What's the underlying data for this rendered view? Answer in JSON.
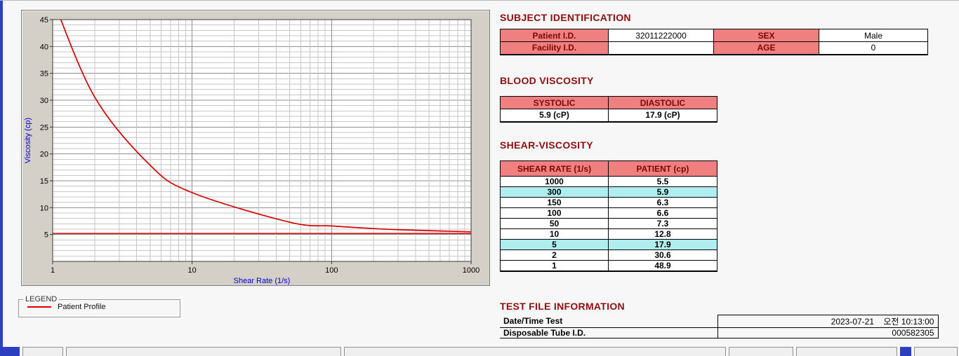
{
  "subject_identification": {
    "heading": "SUBJECT IDENTIFICATION",
    "rows": [
      {
        "label1": "Patient I.D.",
        "value1": "32011222000",
        "label2": "SEX",
        "value2": "Male"
      },
      {
        "label1": "Facility I.D.",
        "value1": "",
        "label2": "AGE",
        "value2": "0"
      }
    ]
  },
  "blood_viscosity": {
    "heading": "BLOOD VISCOSITY",
    "col1_header": "SYSTOLIC",
    "col2_header": "DIASTOLIC",
    "col1_value": "5.9 (cP)",
    "col2_value": "17.9 (cP)"
  },
  "shear_viscosity": {
    "heading": "SHEAR-VISCOSITY",
    "headers": [
      "SHEAR RATE (1/s)",
      "PATIENT (cp)"
    ],
    "rows": [
      {
        "rate": "1000",
        "value": "5.5",
        "highlight": false
      },
      {
        "rate": "300",
        "value": "5.9",
        "highlight": true
      },
      {
        "rate": "150",
        "value": "6.3",
        "highlight": false
      },
      {
        "rate": "100",
        "value": "6.6",
        "highlight": false
      },
      {
        "rate": "50",
        "value": "7.3",
        "highlight": false
      },
      {
        "rate": "10",
        "value": "12.8",
        "highlight": false
      },
      {
        "rate": "5",
        "value": "17.9",
        "highlight": true
      },
      {
        "rate": "2",
        "value": "30.6",
        "highlight": false
      },
      {
        "rate": "1",
        "value": "48.9",
        "highlight": false
      }
    ]
  },
  "test_file_information": {
    "heading": "TEST FILE INFORMATION",
    "rows": [
      {
        "label": "Date/Time Test",
        "value": "2023-07-21    오전 10:13:00"
      },
      {
        "label": "Disposable Tube I.D.",
        "value": "000582305"
      }
    ]
  },
  "legend": {
    "group_label": "LEGEND",
    "series_label": "Patient Profile"
  },
  "chart_data": {
    "type": "line",
    "x_scale": "log",
    "x": [
      1,
      2,
      5,
      10,
      50,
      100,
      150,
      300,
      1000
    ],
    "series": [
      {
        "name": "Patient Profile",
        "values": [
          48.9,
          30.6,
          17.9,
          12.8,
          7.3,
          6.6,
          6.3,
          5.9,
          5.5
        ],
        "color": "#d40000"
      }
    ],
    "reference_line": {
      "y": 5.2,
      "color": "#d40000"
    },
    "title": "",
    "xlabel": "Shear Rate (1/s)",
    "ylabel": "Viscosity (cp)",
    "xlim": [
      1,
      1000
    ],
    "ylim": [
      0,
      45
    ],
    "y_ticks": [
      5,
      10,
      15,
      20,
      25,
      30,
      35,
      40,
      45
    ],
    "x_ticks": [
      1,
      10,
      100,
      1000
    ],
    "grid": true,
    "legend_position": "below-left"
  },
  "colors": {
    "heading": "#8b0f0f",
    "table_header_pink": "#f08080",
    "highlight_cyan": "#aeeeee",
    "curve_red": "#d40000",
    "axis_label_blue": "#0000cc",
    "panel_gray": "#d4d0c8",
    "edge_blue": "#2c3fc0"
  }
}
